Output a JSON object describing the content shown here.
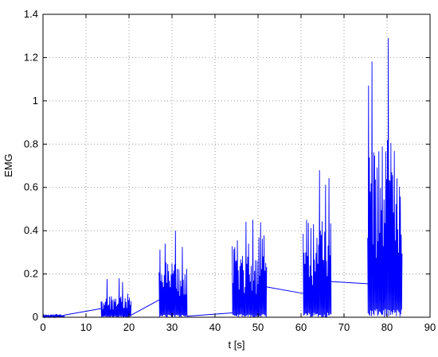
{
  "chart_data": {
    "type": "line",
    "title": "",
    "xlabel": "t [s]",
    "ylabel": "EMG",
    "xlim": [
      0,
      90
    ],
    "ylim": [
      0,
      1.4
    ],
    "xticks": [
      0,
      10,
      20,
      30,
      40,
      50,
      60,
      70,
      80,
      90
    ],
    "yticks": [
      0,
      0.2,
      0.4,
      0.6,
      0.8,
      1,
      1.2,
      1.4
    ],
    "xtick_labels": [
      "0",
      "10",
      "20",
      "30",
      "40",
      "50",
      "60",
      "70",
      "80",
      "90"
    ],
    "ytick_labels": [
      "0",
      "0.2",
      "0.4",
      "0.6",
      "0.8",
      "1",
      "1.2",
      "1.4"
    ],
    "grid": true,
    "series_color": "#0000ff",
    "bursts": [
      {
        "start": 0.0,
        "end": 5.0,
        "peak": 0.015,
        "typical": 0.012
      },
      {
        "start": 13.5,
        "end": 20.5,
        "peak": 0.18,
        "typical": 0.1
      },
      {
        "start": 27.0,
        "end": 33.5,
        "peak": 0.4,
        "typical": 0.24
      },
      {
        "start": 44.0,
        "end": 52.0,
        "peak": 0.45,
        "typical": 0.3
      },
      {
        "start": 60.5,
        "end": 67.0,
        "peak": 0.68,
        "typical": 0.42
      },
      {
        "start": 75.5,
        "end": 83.5,
        "peak": 1.29,
        "typical": 0.75
      }
    ],
    "connectors": [
      {
        "x": [
          5.0,
          13.5
        ],
        "y": [
          0.01,
          0.04
        ]
      },
      {
        "x": [
          20.5,
          27.0
        ],
        "y": [
          0.01,
          0.08
        ]
      },
      {
        "x": [
          33.5,
          44.0
        ],
        "y": [
          0.005,
          0.02
        ]
      },
      {
        "x": [
          52.0,
          60.5
        ],
        "y": [
          0.14,
          0.11
        ]
      },
      {
        "x": [
          67.0,
          75.5
        ],
        "y": [
          0.165,
          0.155
        ]
      }
    ]
  }
}
